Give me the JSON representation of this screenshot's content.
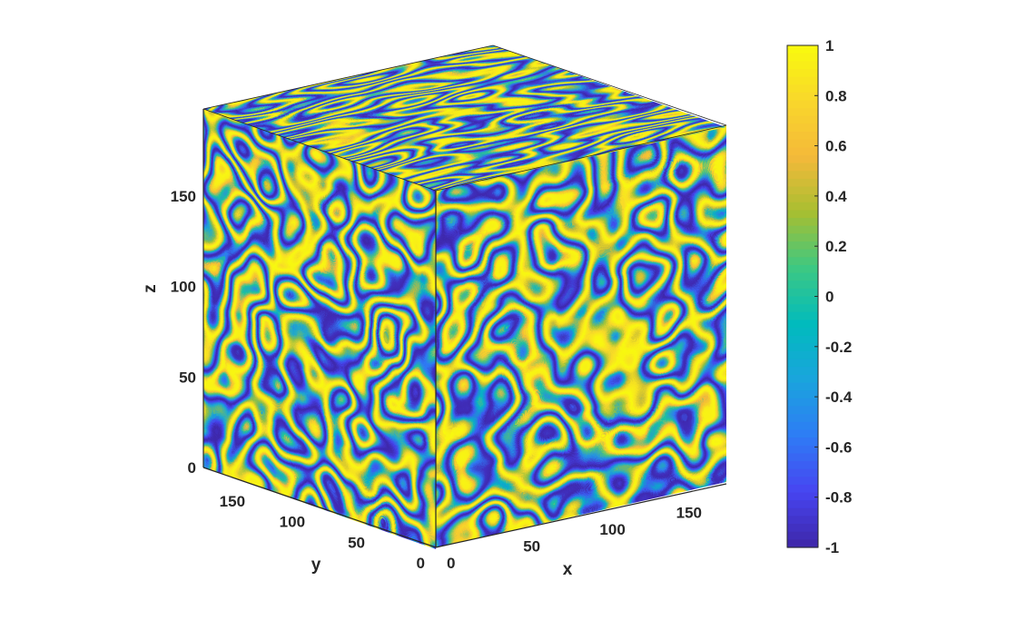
{
  "chart_data": {
    "type": "heatmap",
    "subtype": "3d-volume-slice-cube",
    "title": "",
    "xlabel": "x",
    "ylabel": "y",
    "zlabel": "z",
    "xlim": [
      0,
      190
    ],
    "ylim": [
      0,
      194
    ],
    "zlim": [
      0,
      198
    ],
    "xticks": [
      0,
      50,
      100,
      150
    ],
    "yticks": [
      0,
      50,
      100,
      150
    ],
    "zticks": [
      0,
      50,
      100,
      150
    ],
    "grid": false,
    "colormap": "parula",
    "colormap_stops": [
      "#3e26a8",
      "#4745f1",
      "#2e7cf5",
      "#1aa4dd",
      "#01bbbd",
      "#3cc883",
      "#a7bf31",
      "#f4b93a",
      "#f9d72b",
      "#f9fb0e"
    ],
    "colorbar": {
      "position": "right",
      "clim": [
        -1,
        1
      ],
      "ticks": [
        1,
        0.8,
        0.6,
        0.4,
        0.2,
        0,
        -0.2,
        -0.4,
        -0.6,
        -0.8,
        -1
      ],
      "tick_labels": [
        "1",
        "0.8",
        "0.6",
        "0.4",
        "0.2",
        "0",
        "-0.2",
        "-0.4",
        "-0.6",
        "-0.8",
        "-1"
      ]
    },
    "faces": [
      "top (z = max)",
      "front-left (x = 0)",
      "front-right (y = 0)"
    ]
  }
}
